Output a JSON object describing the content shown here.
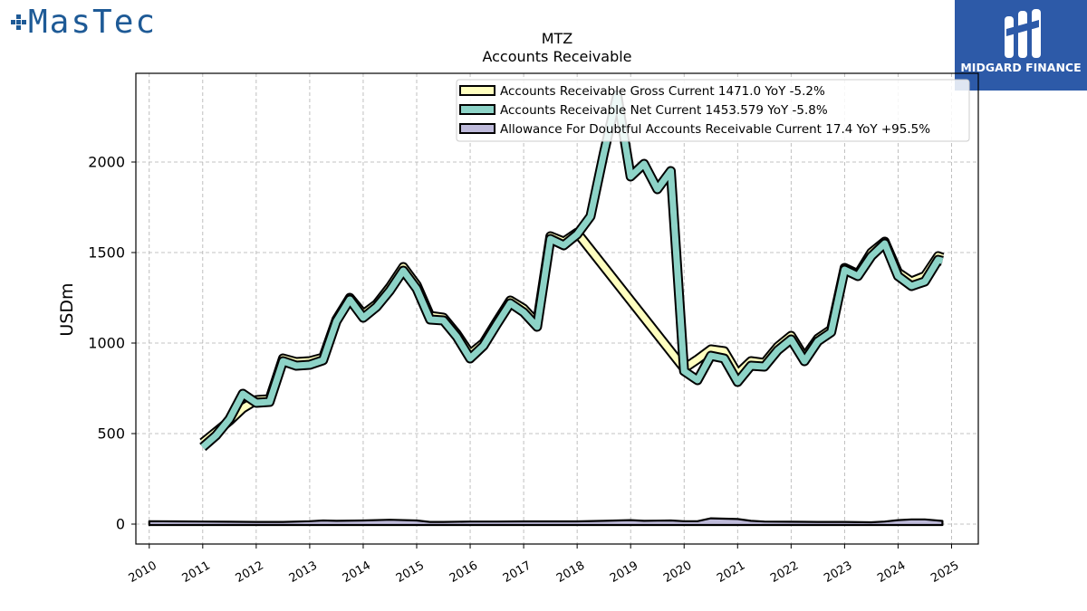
{
  "brand": {
    "logo_text": "MasTec",
    "partner_name": "MIDGARD FINANCE"
  },
  "chart_data": {
    "type": "line",
    "title": "MTZ",
    "subtitle": "Accounts Receivable",
    "ylabel": "USDm",
    "xlabel": "",
    "ylim": [
      -110,
      2490
    ],
    "xlim": [
      2009.75,
      2025.5
    ],
    "yticks": [
      0,
      500,
      1000,
      1500,
      2000
    ],
    "xticks": [
      2010,
      2011,
      2012,
      2013,
      2014,
      2015,
      2016,
      2017,
      2018,
      2019,
      2020,
      2021,
      2022,
      2023,
      2024,
      2025
    ],
    "grid": true,
    "legend_position": "top-right",
    "series": [
      {
        "name": "Accounts Receivable Gross Current",
        "legend_label": "Accounts Receivable Gross Current  1471.0 YoY -5.2%",
        "color": "#ffffbf",
        "points": [
          [
            2011.0,
            450
          ],
          [
            2011.25,
            510
          ],
          [
            2011.5,
            570
          ],
          [
            2011.75,
            640
          ],
          [
            2012.0,
            685
          ],
          [
            2012.25,
            690
          ],
          [
            2012.5,
            915
          ],
          [
            2012.75,
            895
          ],
          [
            2013.0,
            900
          ],
          [
            2013.25,
            920
          ],
          [
            2013.5,
            1130
          ],
          [
            2013.75,
            1250
          ],
          [
            2014.0,
            1160
          ],
          [
            2014.25,
            1215
          ],
          [
            2014.5,
            1310
          ],
          [
            2014.75,
            1420
          ],
          [
            2015.0,
            1320
          ],
          [
            2015.25,
            1150
          ],
          [
            2015.5,
            1140
          ],
          [
            2015.75,
            1050
          ],
          [
            2016.0,
            940
          ],
          [
            2016.25,
            1000
          ],
          [
            2016.5,
            1120
          ],
          [
            2016.75,
            1235
          ],
          [
            2017.0,
            1190
          ],
          [
            2017.25,
            1110
          ],
          [
            2017.5,
            1590
          ],
          [
            2017.75,
            1560
          ],
          [
            2018.0,
            1610
          ],
          [
            2020.0,
            860
          ],
          [
            2020.25,
            910
          ],
          [
            2020.5,
            965
          ],
          [
            2020.75,
            955
          ],
          [
            2021.0,
            830
          ],
          [
            2021.25,
            900
          ],
          [
            2021.5,
            890
          ],
          [
            2021.75,
            980
          ],
          [
            2022.0,
            1040
          ],
          [
            2022.25,
            920
          ],
          [
            2022.5,
            1025
          ],
          [
            2022.75,
            1075
          ],
          [
            2023.0,
            1415
          ],
          [
            2023.25,
            1380
          ],
          [
            2023.5,
            1500
          ],
          [
            2023.75,
            1560
          ],
          [
            2024.0,
            1390
          ],
          [
            2024.25,
            1340
          ],
          [
            2024.5,
            1370
          ],
          [
            2024.75,
            1480
          ],
          [
            2024.83,
            1471
          ]
        ]
      },
      {
        "name": "Accounts Receivable Net Current",
        "legend_label": "Accounts Receivable Net Current  1453.579 YoY -5.8%",
        "color": "#8dd3c7",
        "points": [
          [
            2011.0,
            425
          ],
          [
            2011.25,
            490
          ],
          [
            2011.5,
            580
          ],
          [
            2011.75,
            720
          ],
          [
            2012.0,
            670
          ],
          [
            2012.25,
            675
          ],
          [
            2012.5,
            900
          ],
          [
            2012.75,
            875
          ],
          [
            2013.0,
            880
          ],
          [
            2013.25,
            905
          ],
          [
            2013.5,
            1120
          ],
          [
            2013.75,
            1240
          ],
          [
            2014.0,
            1140
          ],
          [
            2014.25,
            1200
          ],
          [
            2014.5,
            1290
          ],
          [
            2014.75,
            1400
          ],
          [
            2015.0,
            1300
          ],
          [
            2015.25,
            1130
          ],
          [
            2015.5,
            1125
          ],
          [
            2015.75,
            1035
          ],
          [
            2016.0,
            915
          ],
          [
            2016.25,
            985
          ],
          [
            2016.5,
            1105
          ],
          [
            2016.75,
            1220
          ],
          [
            2017.0,
            1170
          ],
          [
            2017.25,
            1090
          ],
          [
            2017.5,
            1575
          ],
          [
            2017.75,
            1540
          ],
          [
            2018.0,
            1600
          ],
          [
            2018.25,
            1700
          ],
          [
            2018.5,
            2050
          ],
          [
            2018.75,
            2370
          ],
          [
            2019.0,
            1920
          ],
          [
            2019.25,
            1990
          ],
          [
            2019.5,
            1850
          ],
          [
            2019.75,
            1950
          ],
          [
            2020.0,
            845
          ],
          [
            2020.25,
            795
          ],
          [
            2020.5,
            930
          ],
          [
            2020.75,
            915
          ],
          [
            2021.0,
            785
          ],
          [
            2021.25,
            875
          ],
          [
            2021.5,
            870
          ],
          [
            2021.75,
            960
          ],
          [
            2022.0,
            1020
          ],
          [
            2022.25,
            900
          ],
          [
            2022.5,
            1010
          ],
          [
            2022.75,
            1060
          ],
          [
            2023.0,
            1405
          ],
          [
            2023.25,
            1370
          ],
          [
            2023.5,
            1480
          ],
          [
            2023.75,
            1550
          ],
          [
            2024.0,
            1370
          ],
          [
            2024.25,
            1315
          ],
          [
            2024.5,
            1340
          ],
          [
            2024.75,
            1460
          ],
          [
            2024.83,
            1453.579
          ]
        ]
      },
      {
        "name": "Allowance For Doubtful Accounts Receivable Current",
        "legend_label": "Allowance For Doubtful Accounts Receivable Current  17.4 YoY +95.5%",
        "color": "#bebada",
        "points": [
          [
            2010.0,
            16
          ],
          [
            2010.5,
            15
          ],
          [
            2011.0,
            14
          ],
          [
            2011.5,
            13
          ],
          [
            2012.0,
            12
          ],
          [
            2012.5,
            12
          ],
          [
            2013.0,
            16
          ],
          [
            2013.25,
            20
          ],
          [
            2013.5,
            18
          ],
          [
            2014.0,
            20
          ],
          [
            2014.5,
            24
          ],
          [
            2015.0,
            20
          ],
          [
            2015.25,
            12
          ],
          [
            2015.5,
            12
          ],
          [
            2016.0,
            14
          ],
          [
            2016.5,
            14
          ],
          [
            2017.0,
            15
          ],
          [
            2017.5,
            15
          ],
          [
            2018.0,
            15
          ],
          [
            2018.5,
            18
          ],
          [
            2019.0,
            22
          ],
          [
            2019.25,
            18
          ],
          [
            2019.5,
            19
          ],
          [
            2019.75,
            20
          ],
          [
            2020.0,
            16
          ],
          [
            2020.25,
            16
          ],
          [
            2020.5,
            32
          ],
          [
            2020.75,
            30
          ],
          [
            2021.0,
            28
          ],
          [
            2021.25,
            18
          ],
          [
            2021.5,
            14
          ],
          [
            2022.0,
            13
          ],
          [
            2022.5,
            12
          ],
          [
            2023.0,
            12
          ],
          [
            2023.5,
            10
          ],
          [
            2023.75,
            14
          ],
          [
            2024.0,
            22
          ],
          [
            2024.25,
            26
          ],
          [
            2024.5,
            26
          ],
          [
            2024.83,
            17.4
          ]
        ]
      }
    ]
  }
}
